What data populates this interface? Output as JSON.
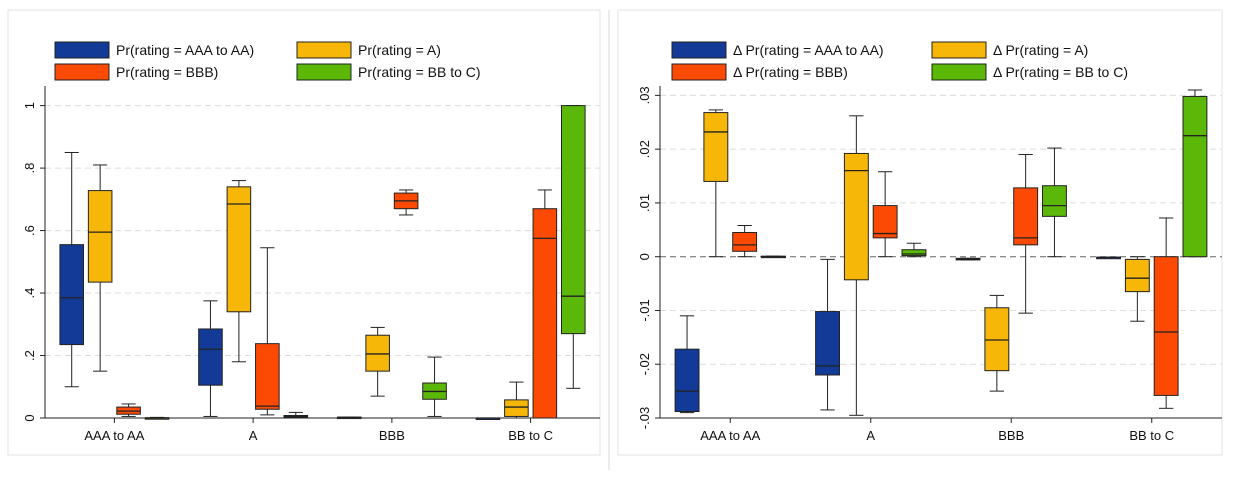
{
  "chart_data": [
    {
      "type": "box",
      "title": "",
      "xlabel": "",
      "ylabel": "",
      "ylim": [
        0,
        1.05
      ],
      "yticks": [
        0,
        0.2,
        0.4,
        0.6,
        0.8,
        1
      ],
      "ytick_labels": [
        "0",
        ".2",
        ".4",
        ".6",
        ".8",
        "1"
      ],
      "grid": true,
      "legend_position": "top",
      "categories": [
        "AAA to AA",
        "A",
        "BBB",
        "BB to C"
      ],
      "series": [
        {
          "name": "Pr(rating = AAA to AA)",
          "color": "#123a96",
          "boxes": [
            {
              "min": 0.1,
              "q1": 0.235,
              "median": 0.385,
              "q3": 0.555,
              "max": 0.85
            },
            {
              "min": 0.005,
              "q1": 0.105,
              "median": 0.22,
              "q3": 0.285,
              "max": 0.375
            },
            {
              "min": 0.0,
              "q1": 0.0,
              "median": 0.002,
              "q3": 0.003,
              "max": 0.003
            },
            {
              "min": 0.0,
              "q1": 0.0,
              "median": 0.0,
              "q3": 0.0,
              "max": 0.0
            }
          ]
        },
        {
          "name": "Pr(rating = A)",
          "color": "#f7b708",
          "boxes": [
            {
              "min": 0.15,
              "q1": 0.435,
              "median": 0.595,
              "q3": 0.728,
              "max": 0.81
            },
            {
              "min": 0.18,
              "q1": 0.34,
              "median": 0.685,
              "q3": 0.74,
              "max": 0.76
            },
            {
              "min": 0.07,
              "q1": 0.15,
              "median": 0.205,
              "q3": 0.265,
              "max": 0.29
            },
            {
              "min": 0.0,
              "q1": 0.005,
              "median": 0.035,
              "q3": 0.058,
              "max": 0.115
            }
          ]
        },
        {
          "name": "Pr(rating = BBB)",
          "color": "#fc4a05",
          "boxes": [
            {
              "min": 0.005,
              "q1": 0.012,
              "median": 0.022,
              "q3": 0.035,
              "max": 0.045
            },
            {
              "min": 0.01,
              "q1": 0.028,
              "median": 0.038,
              "q3": 0.238,
              "max": 0.545
            },
            {
              "min": 0.65,
              "q1": 0.67,
              "median": 0.695,
              "q3": 0.72,
              "max": 0.73
            },
            {
              "min": 0.0,
              "q1": 0.0,
              "median": 0.575,
              "q3": 0.67,
              "max": 0.73
            }
          ]
        },
        {
          "name": "Pr(rating = BB to C)",
          "color": "#5cb808",
          "boxes": [
            {
              "min": 0.0,
              "q1": 0.0,
              "median": 0.0,
              "q3": 0.001,
              "max": 0.002
            },
            {
              "min": 0.0,
              "q1": 0.002,
              "median": 0.005,
              "q3": 0.008,
              "max": 0.018
            },
            {
              "min": 0.005,
              "q1": 0.06,
              "median": 0.085,
              "q3": 0.112,
              "max": 0.195
            },
            {
              "min": 0.095,
              "q1": 0.27,
              "median": 0.39,
              "q3": 1.0,
              "max": 1.0
            }
          ]
        }
      ]
    },
    {
      "type": "box",
      "title": "",
      "xlabel": "",
      "ylabel": "",
      "ylim": [
        -0.03,
        0.031
      ],
      "yticks": [
        -0.03,
        -0.02,
        -0.01,
        0,
        0.01,
        0.02,
        0.03
      ],
      "ytick_labels": [
        "-.03",
        "-.02",
        "-.01",
        "0",
        ".01",
        ".02",
        ".03"
      ],
      "grid": true,
      "zero_line": true,
      "legend_position": "top",
      "categories": [
        "AAA to AA",
        "A",
        "BBB",
        "BB to C"
      ],
      "series": [
        {
          "name": "Δ Pr(rating = AAA to AA)",
          "color": "#123a96",
          "boxes": [
            {
              "min": -0.029,
              "q1": -0.0288,
              "median": -0.025,
              "q3": -0.0172,
              "max": -0.011
            },
            {
              "min": -0.0285,
              "q1": -0.022,
              "median": -0.0203,
              "q3": -0.0102,
              "max": -0.0005
            },
            {
              "min": -0.0006,
              "q1": -0.0006,
              "median": -0.0004,
              "q3": -0.0003,
              "max": -0.0003
            },
            {
              "min": -0.0002,
              "q1": -0.0002,
              "median": -0.0001,
              "q3": -0.0001,
              "max": -0.0001
            }
          ]
        },
        {
          "name": "Δ Pr(rating = A)",
          "color": "#f7b708",
          "boxes": [
            {
              "min": 0.0,
              "q1": 0.014,
              "median": 0.0232,
              "q3": 0.0268,
              "max": 0.0273
            },
            {
              "min": -0.0295,
              "q1": -0.0043,
              "median": 0.016,
              "q3": 0.0192,
              "max": 0.0262
            },
            {
              "min": -0.025,
              "q1": -0.0212,
              "median": -0.0155,
              "q3": -0.0095,
              "max": -0.0072
            },
            {
              "min": -0.012,
              "q1": -0.0065,
              "median": -0.004,
              "q3": -0.0005,
              "max": 0.0
            }
          ]
        },
        {
          "name": "Δ Pr(rating = BBB)",
          "color": "#fc4a05",
          "boxes": [
            {
              "min": 0.0,
              "q1": 0.001,
              "median": 0.0022,
              "q3": 0.0045,
              "max": 0.0058
            },
            {
              "min": 0.0,
              "q1": 0.0035,
              "median": 0.0043,
              "q3": 0.0095,
              "max": 0.0158
            },
            {
              "min": -0.0105,
              "q1": 0.0022,
              "median": 0.0035,
              "q3": 0.0128,
              "max": 0.019
            },
            {
              "min": -0.0282,
              "q1": -0.0258,
              "median": -0.014,
              "q3": 0.0,
              "max": 0.0072
            }
          ]
        },
        {
          "name": "Δ Pr(rating = BB to C)",
          "color": "#5cb808",
          "boxes": [
            {
              "min": 0.0,
              "q1": 0.0,
              "median": 0.0,
              "q3": 0.0001,
              "max": 0.0001
            },
            {
              "min": 0.0,
              "q1": 0.0002,
              "median": 0.0005,
              "q3": 0.0013,
              "max": 0.0025
            },
            {
              "min": 0.0,
              "q1": 0.0075,
              "median": 0.0095,
              "q3": 0.0132,
              "max": 0.0202
            },
            {
              "min": 0.0,
              "q1": 0.0,
              "median": 0.0225,
              "q3": 0.0298,
              "max": 0.031
            }
          ]
        }
      ]
    }
  ]
}
